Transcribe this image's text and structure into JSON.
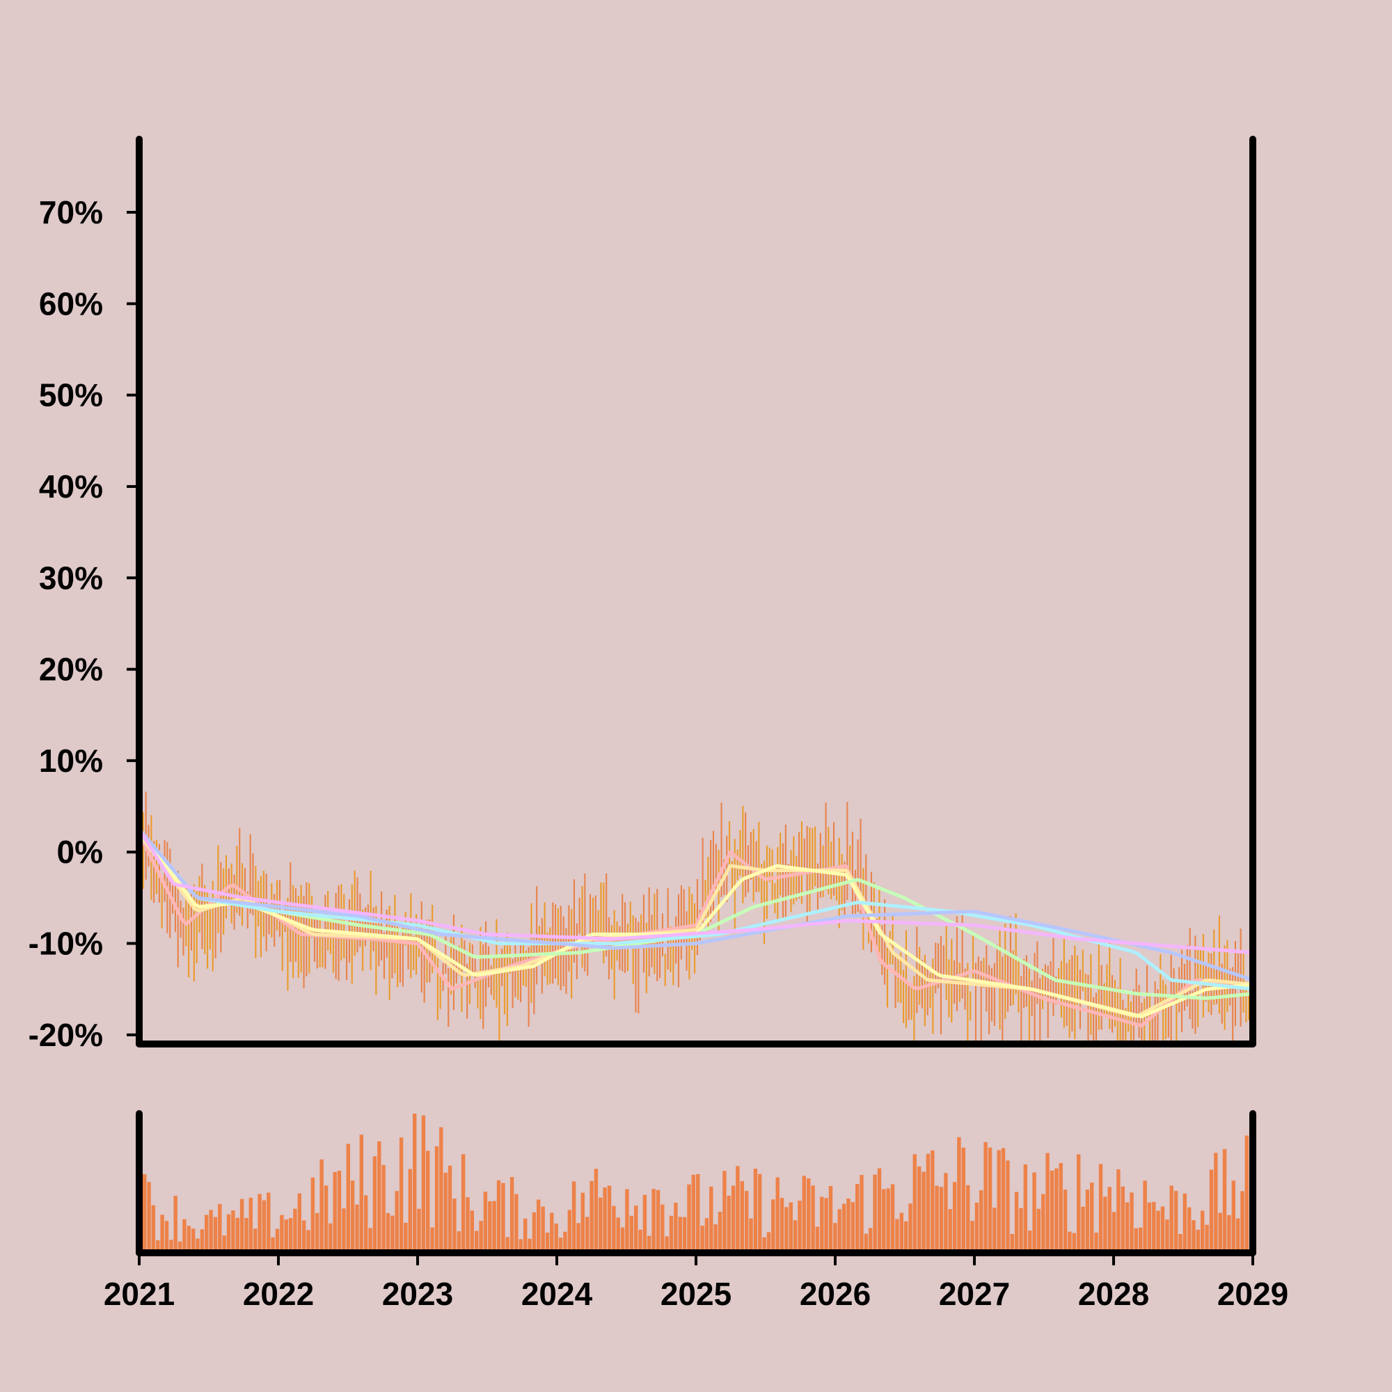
{
  "colors": {
    "background": "#dfc9c9",
    "axis": "#000000",
    "bar_up": "#eb9a2a",
    "bar_down": "#e8834a",
    "volume": "#ed8249",
    "ma_colors": [
      "#ffb6b6",
      "#ffe7a6",
      "#fffdb0",
      "#c6ffb9",
      "#aef0ff",
      "#b7c6ff",
      "#f4b6ff"
    ]
  },
  "chart_data": [
    {
      "type": "bar",
      "subtype": "high-low range bars with moving-average lines",
      "title": "",
      "xlabel": "",
      "ylabel": "",
      "y_unit": "%",
      "xlim": [
        "2021-01-01",
        "2029-01-01"
      ],
      "ylim": [
        -21,
        78
      ],
      "x_ticks": [
        "2021",
        "2022",
        "2023",
        "2024",
        "2025",
        "2026",
        "2027",
        "2028",
        "2029"
      ],
      "y_ticks": [
        "70%",
        "60%",
        "50%",
        "40%",
        "30%",
        "20%",
        "10%",
        "0%",
        "-10%",
        "-20%"
      ],
      "y_tick_values": [
        70,
        60,
        50,
        40,
        30,
        20,
        10,
        0,
        -10,
        -20
      ],
      "grid": false,
      "legend": "none",
      "price_anchors": [
        [
          "2021-01-01",
          2
        ],
        [
          "2021-03-01",
          -4
        ],
        [
          "2021-05-01",
          -8
        ],
        [
          "2021-07-01",
          -7
        ],
        [
          "2021-10-01",
          -3
        ],
        [
          "2022-01-01",
          -8
        ],
        [
          "2022-04-01",
          -9
        ],
        [
          "2022-07-01",
          -9
        ],
        [
          "2022-10-01",
          -9
        ],
        [
          "2023-01-01",
          -10
        ],
        [
          "2023-03-15",
          -14
        ],
        [
          "2023-06-01",
          -13
        ],
        [
          "2023-09-01",
          -14
        ],
        [
          "2024-01-01",
          -11
        ],
        [
          "2024-04-01",
          -9
        ],
        [
          "2024-07-01",
          -9
        ],
        [
          "2024-10-01",
          -10
        ],
        [
          "2025-01-01",
          -8
        ],
        [
          "2025-03-15",
          0
        ],
        [
          "2025-05-01",
          -2
        ],
        [
          "2025-07-01",
          -3
        ],
        [
          "2025-10-01",
          -2
        ],
        [
          "2026-02-01",
          -1
        ],
        [
          "2026-05-01",
          -10
        ],
        [
          "2026-07-01",
          -15
        ],
        [
          "2026-10-01",
          -14
        ],
        [
          "2027-01-01",
          -14
        ],
        [
          "2027-04-01",
          -14
        ],
        [
          "2027-07-01",
          -16
        ],
        [
          "2027-10-01",
          -16
        ],
        [
          "2028-01-01",
          -17
        ],
        [
          "2028-03-15",
          -19
        ],
        [
          "2028-06-01",
          -16
        ],
        [
          "2028-09-01",
          -14
        ],
        [
          "2029-01-01",
          -15
        ]
      ],
      "moving_averages": [
        {
          "points": [
            [
              "2021-01-01",
              2
            ],
            [
              "2021-05-01",
              -8
            ],
            [
              "2021-09-01",
              -3.5
            ],
            [
              "2022-03-01",
              -9
            ],
            [
              "2022-09-01",
              -9.5
            ],
            [
              "2023-01-01",
              -10
            ],
            [
              "2023-04-01",
              -15
            ],
            [
              "2023-09-01",
              -12.5
            ],
            [
              "2024-02-01",
              -10.5
            ],
            [
              "2024-08-01",
              -9
            ],
            [
              "2025-01-01",
              -8
            ],
            [
              "2025-04-01",
              0
            ],
            [
              "2025-07-01",
              -3
            ],
            [
              "2026-02-01",
              -1.5
            ],
            [
              "2026-05-01",
              -12
            ],
            [
              "2026-08-01",
              -15
            ],
            [
              "2027-01-01",
              -13
            ],
            [
              "2027-07-01",
              -16
            ],
            [
              "2028-03-15",
              -19
            ],
            [
              "2028-08-01",
              -14
            ],
            [
              "2029-01-01",
              -14.5
            ]
          ]
        },
        {
          "points": [
            [
              "2021-01-01",
              2
            ],
            [
              "2021-06-01",
              -6.5
            ],
            [
              "2021-10-01",
              -5
            ],
            [
              "2022-04-01",
              -9
            ],
            [
              "2023-01-01",
              -9.5
            ],
            [
              "2023-05-01",
              -13.5
            ],
            [
              "2023-10-01",
              -12.5
            ],
            [
              "2024-04-01",
              -9.5
            ],
            [
              "2025-01-01",
              -8.5
            ],
            [
              "2025-04-01",
              -1.5
            ],
            [
              "2025-07-01",
              -2
            ],
            [
              "2026-02-01",
              -2
            ],
            [
              "2026-06-01",
              -11
            ],
            [
              "2026-09-01",
              -14
            ],
            [
              "2027-06-01",
              -15
            ],
            [
              "2028-03-01",
              -18
            ],
            [
              "2028-09-01",
              -14
            ],
            [
              "2029-01-01",
              -14.5
            ]
          ]
        },
        {
          "points": [
            [
              "2021-01-01",
              2.5
            ],
            [
              "2021-06-01",
              -6
            ],
            [
              "2021-10-01",
              -5.5
            ],
            [
              "2022-04-01",
              -8.5
            ],
            [
              "2023-01-01",
              -9.5
            ],
            [
              "2023-06-01",
              -13.5
            ],
            [
              "2023-11-01",
              -12.5
            ],
            [
              "2024-04-01",
              -9
            ],
            [
              "2025-01-01",
              -9
            ],
            [
              "2025-05-01",
              -3
            ],
            [
              "2025-08-01",
              -1.5
            ],
            [
              "2026-02-01",
              -2.5
            ],
            [
              "2026-05-01",
              -9
            ],
            [
              "2026-10-01",
              -13.5
            ],
            [
              "2027-06-01",
              -15
            ],
            [
              "2028-03-15",
              -18
            ],
            [
              "2028-09-01",
              -15
            ],
            [
              "2029-01-01",
              -14.5
            ]
          ]
        },
        {
          "points": [
            [
              "2021-01-01",
              2.5
            ],
            [
              "2021-06-01",
              -5
            ],
            [
              "2022-01-01",
              -6.5
            ],
            [
              "2022-08-01",
              -8
            ],
            [
              "2023-02-01",
              -9
            ],
            [
              "2023-06-01",
              -11.5
            ],
            [
              "2024-03-01",
              -11
            ],
            [
              "2025-01-01",
              -9
            ],
            [
              "2025-06-01",
              -6
            ],
            [
              "2026-03-01",
              -3
            ],
            [
              "2026-07-01",
              -5
            ],
            [
              "2027-01-01",
              -9
            ],
            [
              "2027-08-01",
              -14
            ],
            [
              "2028-03-01",
              -15.5
            ],
            [
              "2028-09-01",
              -16
            ],
            [
              "2029-01-01",
              -15.5
            ]
          ]
        },
        {
          "points": [
            [
              "2021-01-01",
              2.5
            ],
            [
              "2021-06-01",
              -5
            ],
            [
              "2022-01-01",
              -6.5
            ],
            [
              "2023-01-01",
              -8
            ],
            [
              "2023-08-01",
              -10
            ],
            [
              "2024-06-01",
              -10
            ],
            [
              "2025-03-01",
              -9
            ],
            [
              "2026-03-01",
              -5.5
            ],
            [
              "2026-11-01",
              -6.5
            ],
            [
              "2027-06-01",
              -8
            ],
            [
              "2028-03-01",
              -11
            ],
            [
              "2028-06-01",
              -14
            ],
            [
              "2029-01-01",
              -15
            ]
          ]
        },
        {
          "points": [
            [
              "2021-01-01",
              2.5
            ],
            [
              "2021-06-01",
              -5
            ],
            [
              "2022-01-01",
              -6
            ],
            [
              "2022-08-01",
              -7
            ],
            [
              "2023-03-01",
              -9
            ],
            [
              "2024-06-01",
              -10.5
            ],
            [
              "2025-01-01",
              -10
            ],
            [
              "2026-02-01",
              -7
            ],
            [
              "2027-01-01",
              -6.5
            ],
            [
              "2027-09-01",
              -8.5
            ],
            [
              "2028-06-01",
              -11
            ],
            [
              "2029-01-01",
              -14
            ]
          ]
        },
        {
          "points": [
            [
              "2021-01-01",
              2.5
            ],
            [
              "2021-04-01",
              -3.5
            ],
            [
              "2021-10-01",
              -5
            ],
            [
              "2022-04-01",
              -6
            ],
            [
              "2023-01-01",
              -7.5
            ],
            [
              "2023-07-01",
              -9
            ],
            [
              "2024-06-01",
              -9.5
            ],
            [
              "2025-06-01",
              -8.5
            ],
            [
              "2026-02-01",
              -7.5
            ],
            [
              "2027-01-01",
              -8
            ],
            [
              "2027-10-01",
              -9.5
            ],
            [
              "2029-01-01",
              -11
            ]
          ]
        }
      ]
    },
    {
      "type": "bar",
      "subtype": "volume",
      "title": "",
      "xlabel": "",
      "ylabel": "",
      "ylim": [
        0,
        100
      ],
      "level_anchors": [
        [
          "2021-01-01",
          40
        ],
        [
          "2021-06-01",
          22
        ],
        [
          "2022-01-01",
          30
        ],
        [
          "2022-06-01",
          50
        ],
        [
          "2023-01-01",
          75
        ],
        [
          "2023-06-01",
          40
        ],
        [
          "2024-01-01",
          30
        ],
        [
          "2024-06-01",
          52
        ],
        [
          "2025-01-01",
          38
        ],
        [
          "2025-06-01",
          42
        ],
        [
          "2026-01-01",
          35
        ],
        [
          "2026-06-01",
          50
        ],
        [
          "2027-01-01",
          60
        ],
        [
          "2027-06-01",
          45
        ],
        [
          "2028-01-01",
          55
        ],
        [
          "2028-06-01",
          35
        ],
        [
          "2029-01-01",
          55
        ]
      ]
    }
  ]
}
